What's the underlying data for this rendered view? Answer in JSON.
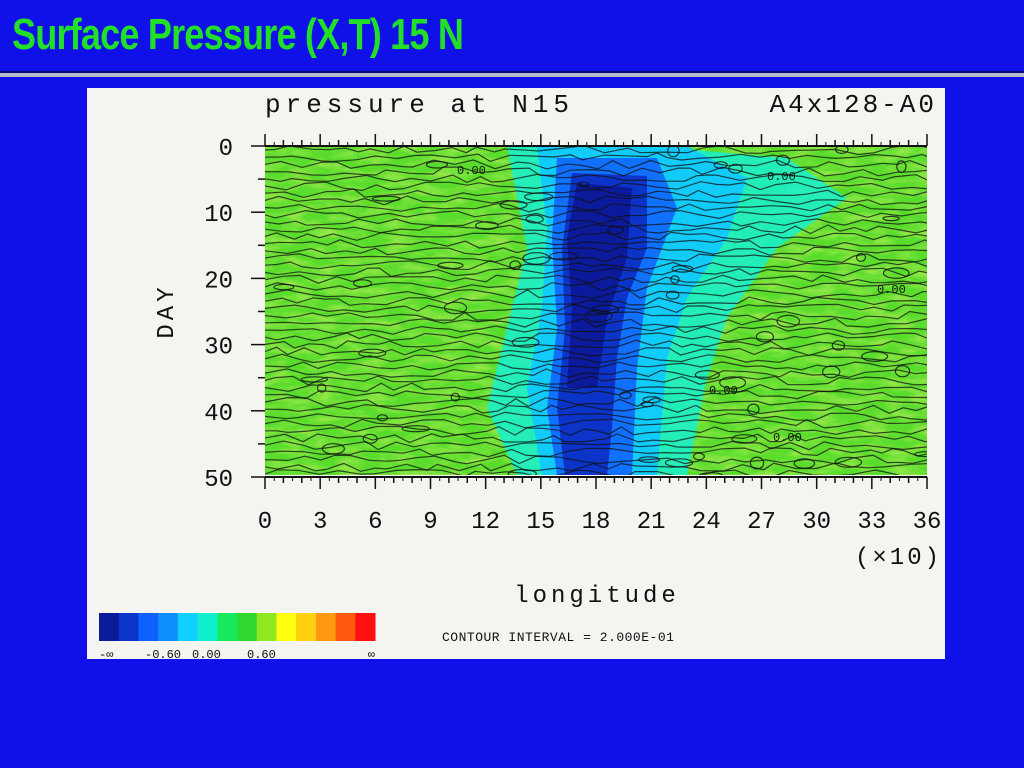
{
  "slide": {
    "title": "Surface Pressure (X,T) 15 N"
  },
  "chart_data": {
    "type": "heatmap",
    "title": "pressure at N15",
    "run_label": "A4x128-A0",
    "xlabel": "longitude",
    "x_multiplier": "(×10)",
    "ylabel": "DAY",
    "xlim": [
      0,
      36
    ],
    "ylim": [
      0,
      50
    ],
    "x_ticks": [
      "0",
      "3",
      "6",
      "9",
      "12",
      "15",
      "18",
      "21",
      "24",
      "27",
      "30",
      "33",
      "36"
    ],
    "y_ticks": [
      "0",
      "10",
      "20",
      "30",
      "40",
      "50"
    ],
    "y_axis_inverted": true,
    "contour_labels": [
      "0.00",
      "0.00",
      "0.00",
      "0.00",
      "0.00"
    ],
    "contour_interval_text": "CONTOUR INTERVAL = 2.000E-01",
    "colorbar": {
      "colors": [
        "#0a1a9a",
        "#0d34c8",
        "#1060ff",
        "#1090ff",
        "#10d0ff",
        "#10f0d0",
        "#18e860",
        "#30d830",
        "#90e820",
        "#ffff10",
        "#ffd010",
        "#ff9a10",
        "#ff5a10",
        "#ff1010"
      ],
      "labels": [
        "-∞",
        "-0.60",
        "0.00",
        "0.60",
        "∞"
      ]
    },
    "grid": false
  }
}
